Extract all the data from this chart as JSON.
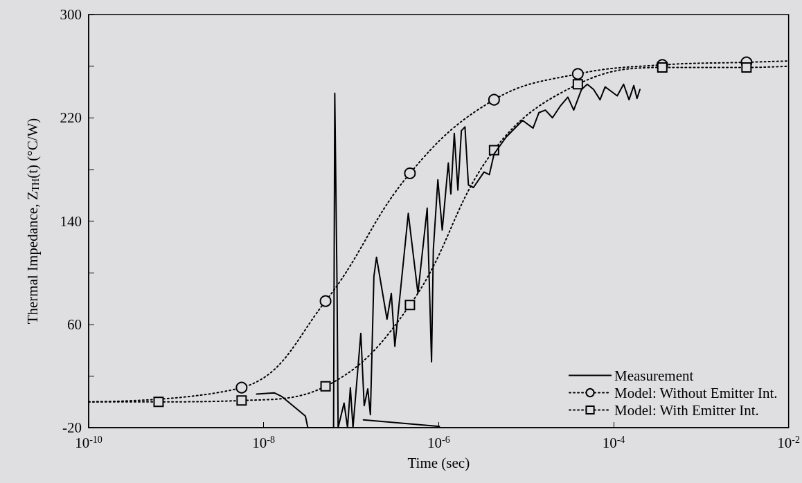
{
  "chart_data": {
    "type": "line",
    "xlabel": "Time (sec)",
    "ylabel": "Thermal Impedance, Z$_{TH}$(t) (°C/W)",
    "log": "x",
    "xlim": [
      1e-10,
      0.01
    ],
    "ylim": [
      -20,
      300
    ],
    "xticks": [
      {
        "value": 1e-10,
        "label": "10$^{-10}$"
      },
      {
        "value": 1e-08,
        "label": "10$^{-8}$"
      },
      {
        "value": 1e-06,
        "label": "10$^{-6}$"
      },
      {
        "value": 0.0001,
        "label": "10$^{-4}$"
      },
      {
        "value": 0.01,
        "label": "10$^{-2}$"
      }
    ],
    "yticks": [
      -20,
      {
        "value": 20,
        "label": null
      },
      60,
      {
        "value": 100,
        "label": null
      },
      140,
      {
        "value": 180,
        "label": null
      },
      220,
      {
        "value": 260,
        "label": null
      },
      300
    ],
    "grid": false,
    "legend": "bottom right",
    "series": [
      {
        "name": "Measurement",
        "color": "#000000",
        "marker": "none",
        "line_style": "solid",
        "x": [
          8.3e-09,
          1.32e-08,
          1.62e-08,
          3e-08,
          3.2e-08,
          6.3e-08,
          6.5e-08,
          6.9e-08,
          7.1e-08,
          8.3e-08,
          9.1e-08,
          9.8e-08,
          1.05e-07,
          1.29e-07,
          1.41e-07,
          1.55e-07,
          1.66e-07,
          1.82e-07,
          1.95e-07,
          2.57e-07,
          2.88e-07,
          3.16e-07,
          4.5e-07,
          5.8e-07,
          7.4e-07,
          8.3e-07,
          8.7e-07,
          9.8e-07,
          1.1e-06,
          1.29e-06,
          1.38e-06,
          1.51e-06,
          1.66e-06,
          1.82e-06,
          2e-06,
          2.19e-06,
          2.5e-06,
          3.3e-06,
          3.8e-06,
          4.3e-06,
          5.9e-06,
          9.1e-06,
          1.2e-05,
          1.4e-05,
          1.66e-05,
          2e-05,
          2.45e-05,
          3e-05,
          3.5e-05,
          4.3e-05,
          5e-05,
          5.9e-05,
          7e-05,
          8e-05,
          0.00011,
          0.00013,
          0.00015,
          0.00017,
          0.000185,
          0.0002
        ],
        "values": [
          6,
          7,
          4,
          -11,
          -20,
          -20,
          239,
          90,
          -20,
          -1,
          -20,
          11,
          -20,
          53,
          -3,
          10,
          -10,
          97,
          112,
          64,
          84,
          43,
          146,
          84,
          150,
          31,
          118,
          172,
          133,
          185,
          161,
          208,
          164,
          210,
          213,
          168,
          166,
          178,
          176,
          192,
          205,
          218,
          212,
          224,
          226,
          220,
          229,
          236,
          226,
          242,
          246,
          242,
          234,
          244,
          237,
          246,
          234,
          245,
          235,
          242
        ]
      },
      {
        "color": "#000000",
        "marker": "none",
        "line_style": "solid",
        "x": [
          1.38e-07,
          1.02e-06
        ],
        "values": [
          -14,
          -19
        ]
      },
      {
        "name": "Model: Without Emitter Int.",
        "color": "#000000",
        "marker": "circle",
        "line_style": "dotted",
        "x": [
          1e-10,
          5.6e-09,
          5.1e-08,
          4.7e-07,
          4.3e-06,
          3.9e-05,
          0.00036,
          0.0033,
          0.01
        ],
        "values": [
          0,
          11,
          78,
          177,
          234,
          254,
          261,
          263,
          264
        ]
      },
      {
        "name": "Model: With Emitter Int.",
        "color": "#000000",
        "marker": "square",
        "line_style": "dotted",
        "x": [
          1e-10,
          6.3e-10,
          5.6e-09,
          5.1e-08,
          4.7e-07,
          4.3e-06,
          3.9e-05,
          0.00036,
          0.0033,
          0.01
        ],
        "values": [
          0,
          0,
          1,
          12,
          75,
          195,
          246,
          259,
          259,
          260
        ]
      }
    ]
  }
}
